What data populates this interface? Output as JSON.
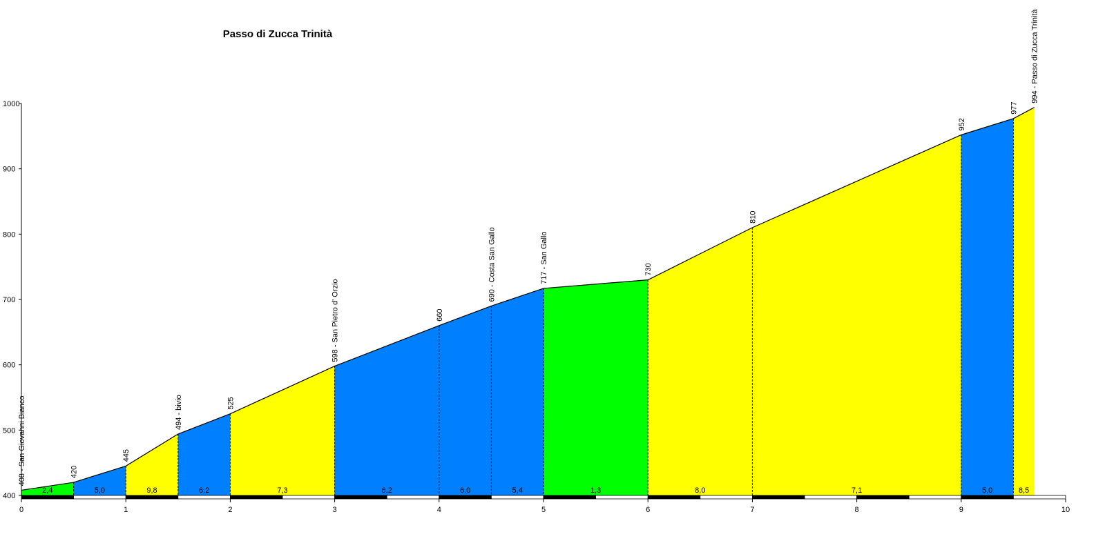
{
  "chart_data": {
    "type": "area",
    "title": "Passo di Zucca Trinità",
    "xlim": [
      0,
      10
    ],
    "ylim": [
      400,
      1000
    ],
    "x_ticks": [
      "0",
      "1",
      "2",
      "3",
      "4",
      "5",
      "6",
      "7",
      "8",
      "9",
      "10"
    ],
    "y_ticks": [
      "400",
      "500",
      "600",
      "700",
      "800",
      "900",
      "1000"
    ],
    "points": [
      {
        "x": 0.0,
        "y": 408,
        "label": "408 - San Giovanni Bianco"
      },
      {
        "x": 0.5,
        "y": 420,
        "label": "420"
      },
      {
        "x": 1.0,
        "y": 445,
        "label": "445"
      },
      {
        "x": 1.5,
        "y": 494,
        "label": "494 - bivio"
      },
      {
        "x": 2.0,
        "y": 525,
        "label": "525"
      },
      {
        "x": 3.0,
        "y": 598,
        "label": "598 - San Pietro d' Orzio"
      },
      {
        "x": 4.0,
        "y": 660,
        "label": "660"
      },
      {
        "x": 4.5,
        "y": 690,
        "label": "690 - Costa San Gallo"
      },
      {
        "x": 5.0,
        "y": 717,
        "label": "717 - San Gallo"
      },
      {
        "x": 6.0,
        "y": 730,
        "label": "730"
      },
      {
        "x": 7.0,
        "y": 810,
        "label": "810"
      },
      {
        "x": 9.0,
        "y": 952,
        "label": "952"
      },
      {
        "x": 9.5,
        "y": 977,
        "label": "977"
      },
      {
        "x": 9.7,
        "y": 994,
        "label": "994 - Passo di Zucca Trinità"
      }
    ],
    "segments": [
      {
        "from": 0.0,
        "to": 0.5,
        "gradient": "2,4",
        "color": "#00ff00"
      },
      {
        "from": 0.5,
        "to": 1.0,
        "gradient": "5,0",
        "color": "#0080ff"
      },
      {
        "from": 1.0,
        "to": 1.5,
        "gradient": "9,8",
        "color": "#ffff00"
      },
      {
        "from": 1.5,
        "to": 2.0,
        "gradient": "6,2",
        "color": "#0080ff"
      },
      {
        "from": 2.0,
        "to": 3.0,
        "gradient": "7,3",
        "color": "#ffff00"
      },
      {
        "from": 3.0,
        "to": 4.0,
        "gradient": "6,2",
        "color": "#0080ff"
      },
      {
        "from": 4.0,
        "to": 4.5,
        "gradient": "6,0",
        "color": "#0080ff"
      },
      {
        "from": 4.5,
        "to": 5.0,
        "gradient": "5,4",
        "color": "#0080ff"
      },
      {
        "from": 5.0,
        "to": 6.0,
        "gradient": "1,3",
        "color": "#00ff00"
      },
      {
        "from": 6.0,
        "to": 7.0,
        "gradient": "8,0",
        "color": "#ffff00"
      },
      {
        "from": 7.0,
        "to": 9.0,
        "gradient": "7,1",
        "color": "#ffff00"
      },
      {
        "from": 9.0,
        "to": 9.5,
        "gradient": "5,0",
        "color": "#0080ff"
      },
      {
        "from": 9.5,
        "to": 9.7,
        "gradient": "8,5",
        "color": "#ffff00"
      }
    ],
    "grid": false
  }
}
